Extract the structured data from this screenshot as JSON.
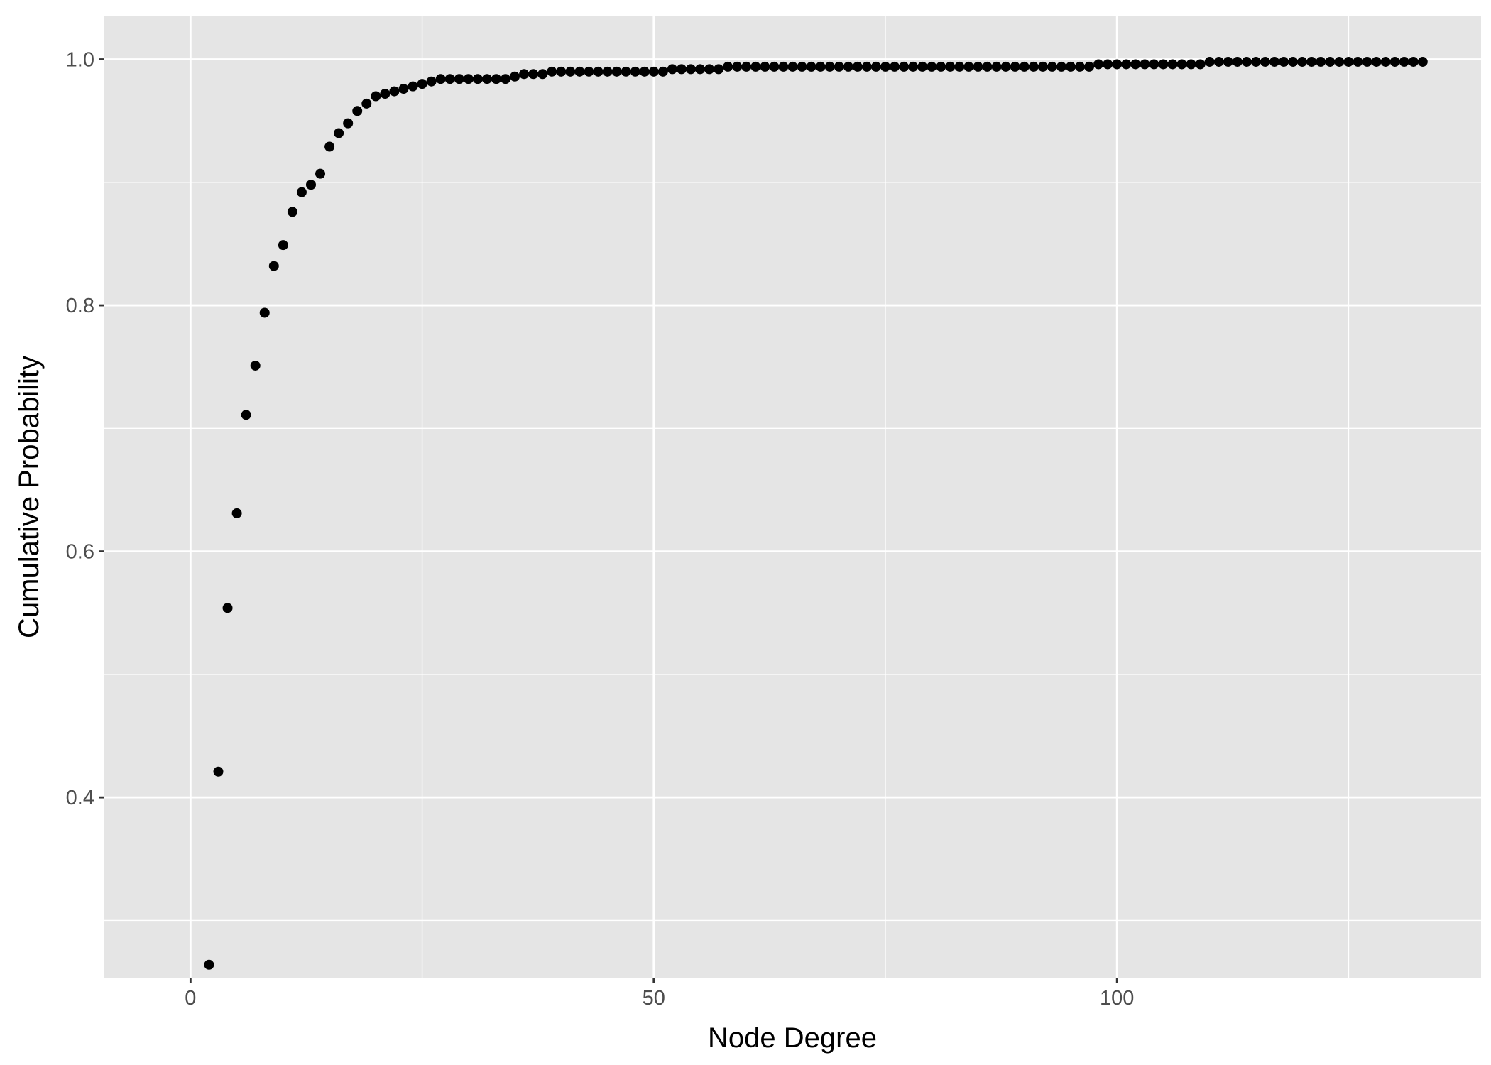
{
  "chart_data": {
    "type": "scatter",
    "title": "",
    "xlabel": "Node Degree",
    "ylabel": "Cumulative Probability",
    "xlim": [
      -9.3,
      139.3
    ],
    "ylim": [
      0.2535,
      1.0355
    ],
    "x_ticks": [
      0,
      50,
      100
    ],
    "x_tick_labels": [
      "0",
      "50",
      "100"
    ],
    "y_ticks": [
      0.4,
      0.6,
      0.8,
      1.0
    ],
    "y_tick_labels": [
      "0.4",
      "0.6",
      "0.8",
      "1.0"
    ],
    "grid": true,
    "legend": "none",
    "colors": {
      "panel": "#e5e5e5",
      "grid": "#ffffff",
      "point": "#000000"
    },
    "x": [
      2,
      3,
      4,
      5,
      6,
      7,
      8,
      9,
      10,
      11,
      12,
      13,
      14,
      15,
      16,
      17,
      18,
      19,
      20,
      21,
      22,
      23,
      24,
      25,
      26,
      27,
      28,
      29,
      30,
      31,
      32,
      33,
      34,
      35,
      36,
      37,
      38,
      39,
      40,
      41,
      42,
      43,
      44,
      45,
      46,
      47,
      48,
      49,
      50,
      51,
      52,
      53,
      54,
      55,
      56,
      57,
      58,
      59,
      60,
      61,
      62,
      63,
      64,
      65,
      66,
      67,
      68,
      69,
      70,
      71,
      72,
      73,
      74,
      75,
      76,
      77,
      78,
      79,
      80,
      81,
      82,
      83,
      84,
      85,
      86,
      87,
      88,
      89,
      90,
      91,
      92,
      93,
      94,
      95,
      96,
      97,
      98,
      99,
      100,
      101,
      102,
      103,
      104,
      105,
      106,
      107,
      108,
      109,
      110,
      111,
      112,
      113,
      114,
      115,
      116,
      117,
      118,
      119,
      120,
      121,
      122,
      123,
      124,
      125,
      126,
      127,
      128,
      129,
      130,
      131,
      132,
      133
    ],
    "y": [
      0.264,
      0.421,
      0.554,
      0.631,
      0.711,
      0.751,
      0.794,
      0.832,
      0.849,
      0.876,
      0.892,
      0.898,
      0.907,
      0.929,
      0.94,
      0.948,
      0.958,
      0.964,
      0.97,
      0.972,
      0.974,
      0.976,
      0.978,
      0.98,
      0.982,
      0.984,
      0.984,
      0.984,
      0.984,
      0.984,
      0.984,
      0.984,
      0.984,
      0.986,
      0.988,
      0.988,
      0.988,
      0.99,
      0.99,
      0.99,
      0.99,
      0.99,
      0.99,
      0.99,
      0.99,
      0.99,
      0.99,
      0.99,
      0.99,
      0.99,
      0.992,
      0.992,
      0.992,
      0.992,
      0.992,
      0.992,
      0.994,
      0.994,
      0.994,
      0.994,
      0.994,
      0.994,
      0.994,
      0.994,
      0.994,
      0.994,
      0.994,
      0.994,
      0.994,
      0.994,
      0.994,
      0.994,
      0.994,
      0.994,
      0.994,
      0.994,
      0.994,
      0.994,
      0.994,
      0.994,
      0.994,
      0.994,
      0.994,
      0.994,
      0.994,
      0.994,
      0.994,
      0.994,
      0.994,
      0.994,
      0.994,
      0.994,
      0.994,
      0.994,
      0.994,
      0.994,
      0.996,
      0.996,
      0.996,
      0.996,
      0.996,
      0.996,
      0.996,
      0.996,
      0.996,
      0.996,
      0.996,
      0.996,
      0.998,
      0.998,
      0.998,
      0.998,
      0.998,
      0.998,
      0.998,
      0.998,
      0.998,
      0.998,
      0.998,
      0.998,
      0.998,
      0.998,
      0.998,
      0.998,
      0.998,
      0.998,
      0.998,
      0.998,
      0.998,
      0.998,
      0.998,
      0.998
    ]
  }
}
